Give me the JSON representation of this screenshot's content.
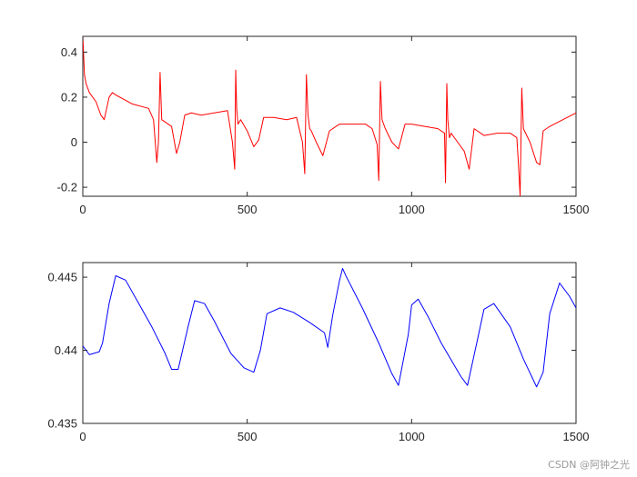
{
  "watermark": "CSDN @阿钟之光",
  "chart_data": [
    {
      "type": "line",
      "color": "#ff0000",
      "xlim": [
        0,
        1500
      ],
      "ylim": [
        -0.24,
        0.47
      ],
      "xticks": [
        0,
        500,
        1000,
        1500
      ],
      "xtick_labels": [
        "0",
        "500",
        "1000",
        "1500"
      ],
      "yticks": [
        -0.2,
        0,
        0.2,
        0.4
      ],
      "ytick_labels": [
        "-0.2",
        "0",
        "0.2",
        "0.4"
      ],
      "grid": false,
      "series": [
        {
          "x": [
            0,
            5,
            10,
            20,
            40,
            55,
            65,
            80,
            90,
            100,
            150,
            200,
            215,
            225,
            230,
            235,
            240,
            250,
            270,
            285,
            295,
            310,
            330,
            360,
            400,
            440,
            455,
            462,
            465,
            468,
            472,
            480,
            500,
            520,
            535,
            550,
            580,
            620,
            650,
            668,
            675,
            680,
            685,
            690,
            695,
            710,
            730,
            750,
            780,
            820,
            860,
            880,
            895,
            900,
            905,
            910,
            920,
            940,
            960,
            980,
            1000,
            1040,
            1080,
            1100,
            1103,
            1107,
            1110,
            1115,
            1120,
            1140,
            1160,
            1175,
            1190,
            1220,
            1260,
            1300,
            1320,
            1325,
            1330,
            1335,
            1340,
            1360,
            1380,
            1390,
            1400,
            1420,
            1460,
            1500
          ],
          "y": [
            0.47,
            0.3,
            0.26,
            0.22,
            0.18,
            0.12,
            0.1,
            0.2,
            0.22,
            0.21,
            0.17,
            0.15,
            0.1,
            -0.09,
            0.0,
            0.31,
            0.1,
            0.09,
            0.07,
            -0.05,
            0.0,
            0.12,
            0.13,
            0.12,
            0.13,
            0.14,
            0.0,
            -0.12,
            0.32,
            0.15,
            0.08,
            0.1,
            0.05,
            -0.02,
            0.01,
            0.11,
            0.11,
            0.1,
            0.11,
            0.0,
            -0.14,
            0.3,
            0.12,
            0.06,
            0.05,
            0.0,
            -0.06,
            0.05,
            0.08,
            0.08,
            0.08,
            0.06,
            -0.01,
            -0.17,
            0.27,
            0.1,
            0.06,
            0.0,
            -0.03,
            0.08,
            0.08,
            0.07,
            0.06,
            0.04,
            -0.18,
            0.26,
            0.1,
            0.02,
            0.04,
            0.0,
            -0.04,
            -0.12,
            0.06,
            0.03,
            0.04,
            0.04,
            0.02,
            -0.1,
            -0.24,
            0.24,
            0.06,
            0.0,
            -0.09,
            -0.1,
            0.05,
            0.07,
            0.1,
            0.13
          ]
        }
      ]
    },
    {
      "type": "line",
      "color": "#0000ff",
      "xlim": [
        0,
        1500
      ],
      "ylim": [
        0.435,
        0.446
      ],
      "xticks": [
        0,
        500,
        1000,
        1500
      ],
      "xtick_labels": [
        "0",
        "500",
        "1000",
        "1500"
      ],
      "yticks": [
        0.435,
        0.44,
        0.445
      ],
      "ytick_labels": [
        "0.435",
        "0.44",
        "0.445"
      ],
      "grid": false,
      "series": [
        {
          "x": [
            0,
            20,
            50,
            60,
            80,
            100,
            130,
            170,
            210,
            250,
            270,
            290,
            320,
            340,
            370,
            400,
            450,
            490,
            520,
            540,
            560,
            600,
            640,
            690,
            735,
            745,
            760,
            780,
            790,
            800,
            850,
            900,
            940,
            960,
            990,
            1000,
            1020,
            1050,
            1090,
            1150,
            1170,
            1200,
            1220,
            1250,
            1300,
            1340,
            1380,
            1400,
            1420,
            1450,
            1480,
            1500
          ],
          "y": [
            0.4403,
            0.4397,
            0.4399,
            0.4405,
            0.4432,
            0.4451,
            0.4448,
            0.4432,
            0.4416,
            0.4398,
            0.4387,
            0.4387,
            0.4416,
            0.4434,
            0.4432,
            0.442,
            0.4398,
            0.4388,
            0.4385,
            0.44,
            0.4425,
            0.4429,
            0.4426,
            0.4419,
            0.4412,
            0.4402,
            0.4424,
            0.4447,
            0.4456,
            0.4451,
            0.4429,
            0.4405,
            0.4384,
            0.4376,
            0.4411,
            0.4431,
            0.4435,
            0.4423,
            0.4405,
            0.4382,
            0.4376,
            0.4407,
            0.4428,
            0.4432,
            0.4416,
            0.4394,
            0.4375,
            0.4385,
            0.4425,
            0.4446,
            0.4437,
            0.4429
          ]
        }
      ]
    }
  ]
}
